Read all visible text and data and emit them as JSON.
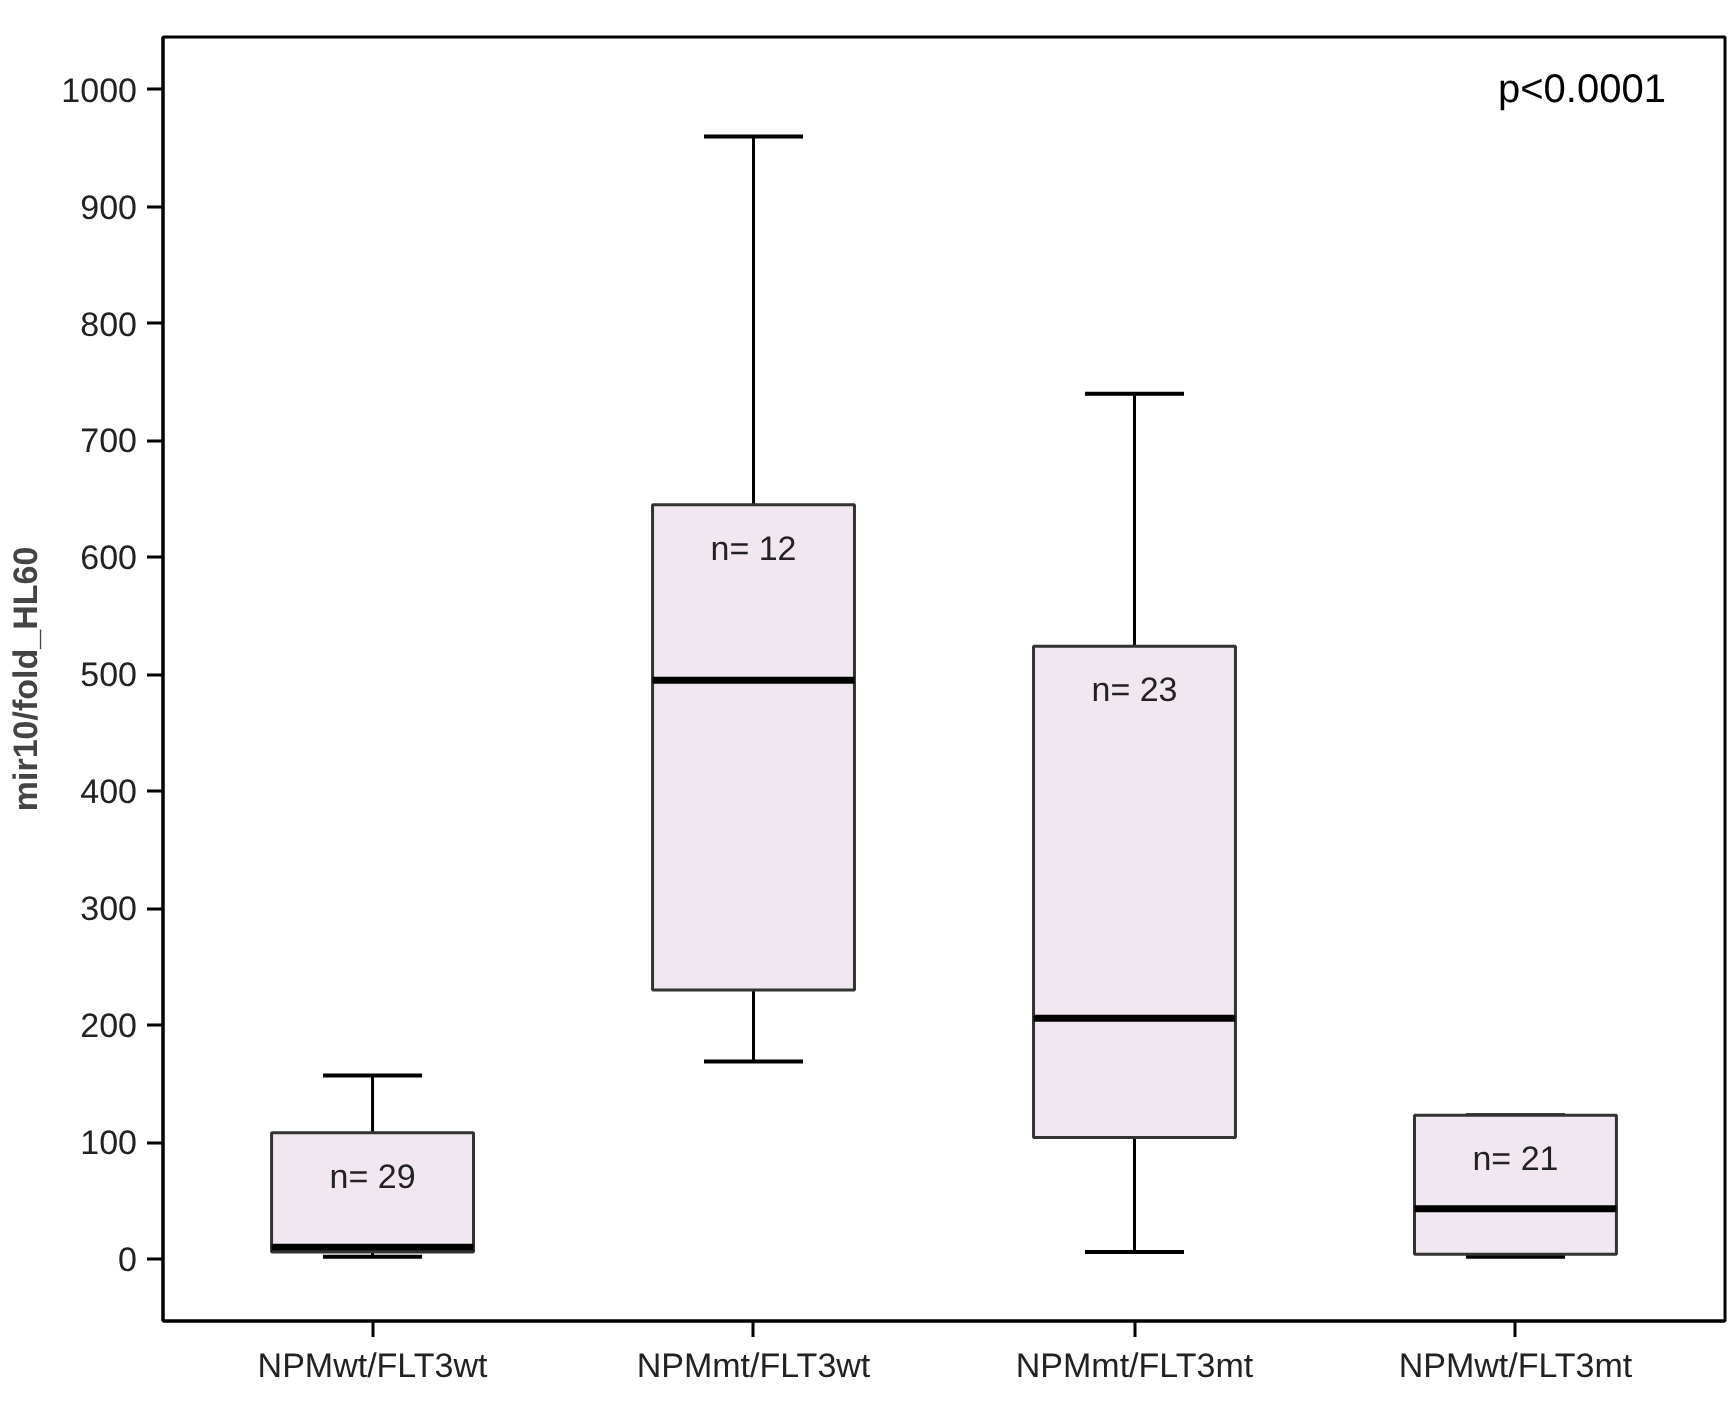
{
  "chart_data": {
    "type": "box",
    "ylabel": "mir10/fold_HL60",
    "categories": [
      "NPMwt/FLT3wt",
      "NPMmt/FLT3wt",
      "NPMmt/FLT3mt",
      "NPMwt/FLT3mt"
    ],
    "boxes": [
      {
        "low": 2,
        "q1": 6,
        "median": 10,
        "q3": 108,
        "high": 157
      },
      {
        "low": 169,
        "q1": 230,
        "median": 495,
        "q3": 645,
        "high": 960
      },
      {
        "low": 6,
        "q1": 104,
        "median": 206,
        "q3": 524,
        "high": 740
      },
      {
        "low": 2,
        "q1": 4,
        "median": 43,
        "q3": 123,
        "high": 123
      }
    ],
    "color": "#f1e7f1",
    "ylim": [
      -53,
      1045
    ],
    "yticks": [
      0,
      100,
      200,
      300,
      400,
      500,
      600,
      700,
      800,
      900,
      1000
    ],
    "grid": false,
    "annotations": [
      "n= 29",
      "n= 12",
      "n= 23",
      "n= 21",
      "p<0.0001"
    ]
  }
}
